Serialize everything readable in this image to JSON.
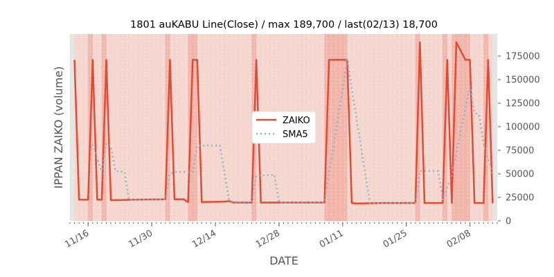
{
  "chart_data": {
    "type": "line",
    "title": "1801 auKABU Line(Close) / max 189,700 / last(02/13) 18,700",
    "xlabel": "DATE",
    "ylabel": "IPPAN ZAIKO (volume)",
    "ylim": [
      0,
      198500
    ],
    "xlim": [
      "11/12",
      "02/14"
    ],
    "yticks": [
      0,
      25000,
      50000,
      75000,
      100000,
      125000,
      150000,
      175000
    ],
    "xticks": [
      "11/16",
      "11/30",
      "12/14",
      "12/28",
      "01/11",
      "01/25",
      "02/08"
    ],
    "legend": {
      "placement": "center",
      "entries": [
        "ZAIKO",
        "SMA5"
      ]
    },
    "grid": false,
    "colors": {
      "zaiko": "#e24a33",
      "sma5": "#8eb1c7",
      "band": "#f5d6cf",
      "band_dark": "#f2b5ab",
      "edge": "#e5e5e5"
    },
    "highlight_bands": [
      [
        "11/16",
        "11/17"
      ],
      [
        "11/19",
        "11/20"
      ],
      [
        "12/03",
        "12/04"
      ],
      [
        "12/08",
        "12/10"
      ],
      [
        "12/22",
        "12/23"
      ],
      [
        "01/07",
        "01/12"
      ],
      [
        "01/27",
        "01/28"
      ],
      [
        "02/02",
        "02/03"
      ],
      [
        "02/04",
        "02/08"
      ],
      [
        "02/11",
        "02/12"
      ]
    ],
    "series": [
      {
        "name": "ZAIKO",
        "style": "solid",
        "points": [
          [
            "11/13",
            171000
          ],
          [
            "11/14",
            22500
          ],
          [
            "11/16",
            22500
          ],
          [
            "11/17",
            171000
          ],
          [
            "11/18",
            22500
          ],
          [
            "11/19",
            22500
          ],
          [
            "11/20",
            171000
          ],
          [
            "11/21",
            22000
          ],
          [
            "11/26",
            22500
          ],
          [
            "12/03",
            23000
          ],
          [
            "12/04",
            171000
          ],
          [
            "12/05",
            23000
          ],
          [
            "12/07",
            23000
          ],
          [
            "12/08",
            20000
          ],
          [
            "12/09",
            171000
          ],
          [
            "12/10",
            171000
          ],
          [
            "12/11",
            20000
          ],
          [
            "12/16",
            20500
          ],
          [
            "12/17",
            21000
          ],
          [
            "12/18",
            19500
          ],
          [
            "12/22",
            19500
          ],
          [
            "12/23",
            171000
          ],
          [
            "12/24",
            19500
          ],
          [
            "01/07",
            19500
          ],
          [
            "01/08",
            171000
          ],
          [
            "01/12",
            171000
          ],
          [
            "01/13",
            19000
          ],
          [
            "01/14",
            18500
          ],
          [
            "01/20",
            19000
          ],
          [
            "01/27",
            19000
          ],
          [
            "01/28",
            189700
          ],
          [
            "01/29",
            19000
          ],
          [
            "02/02",
            19000
          ],
          [
            "02/03",
            171000
          ],
          [
            "02/04",
            19000
          ],
          [
            "02/05",
            189700
          ],
          [
            "02/07",
            171000
          ],
          [
            "02/08",
            171000
          ],
          [
            "02/09",
            19000
          ],
          [
            "02/11",
            19000
          ],
          [
            "02/12",
            171000
          ],
          [
            "02/13",
            18700
          ]
        ]
      },
      {
        "name": "SMA5",
        "style": "dotted",
        "points": [
          [
            "11/17",
            81000
          ],
          [
            "11/19",
            51000
          ],
          [
            "11/20",
            82000
          ],
          [
            "11/21",
            80000
          ],
          [
            "11/22",
            53000
          ],
          [
            "11/24",
            52000
          ],
          [
            "11/25",
            22500
          ],
          [
            "12/03",
            23000
          ],
          [
            "12/04",
            50000
          ],
          [
            "12/05",
            52000
          ],
          [
            "12/09",
            52000
          ],
          [
            "12/10",
            80000
          ],
          [
            "12/15",
            80000
          ],
          [
            "12/17",
            22000
          ],
          [
            "12/18",
            20000
          ],
          [
            "12/22",
            20000
          ],
          [
            "12/23",
            48000
          ],
          [
            "12/27",
            49000
          ],
          [
            "12/28",
            19500
          ],
          [
            "01/07",
            19500
          ],
          [
            "01/12",
            171000
          ],
          [
            "01/17",
            19000
          ],
          [
            "01/27",
            19000
          ],
          [
            "01/28",
            53000
          ],
          [
            "02/01",
            53000
          ],
          [
            "02/02",
            23000
          ],
          [
            "02/04",
            48000
          ],
          [
            "02/08",
            143000
          ],
          [
            "02/09",
            115000
          ],
          [
            "02/10",
            113000
          ],
          [
            "02/11",
            82000
          ],
          [
            "02/13",
            50000
          ]
        ]
      }
    ]
  }
}
